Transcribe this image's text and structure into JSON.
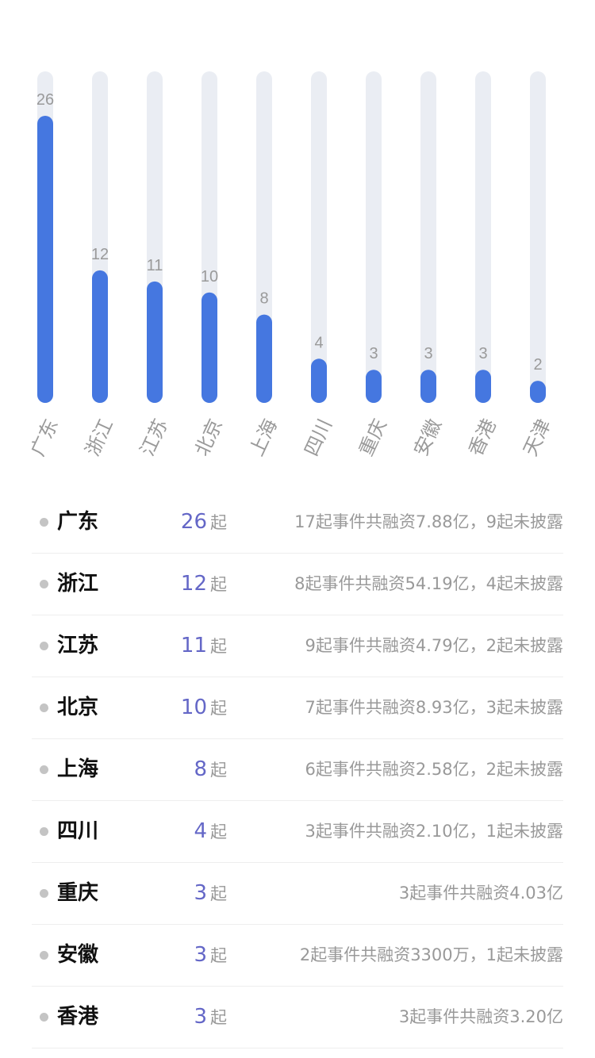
{
  "colors": {
    "bar_fill": "#4577e0",
    "bar_track": "#eaedf3",
    "value_label": "#9a9a9a",
    "axis_label": "#9a9a9a",
    "count": "#6467c7",
    "dot": "#c4c4c4"
  },
  "chart_data": {
    "type": "bar",
    "categories": [
      "广东",
      "浙江",
      "江苏",
      "北京",
      "上海",
      "四川",
      "重庆",
      "安徽",
      "香港",
      "天津"
    ],
    "values": [
      26,
      12,
      11,
      10,
      8,
      4,
      3,
      3,
      3,
      2
    ],
    "data_labels": [
      "26",
      "12",
      "11",
      "10",
      "8",
      "4",
      "3",
      "3",
      "3",
      "2"
    ],
    "ylim": [
      0,
      26
    ],
    "grid": false,
    "legend": "none"
  },
  "list": {
    "rows": [
      {
        "name": "广东",
        "count": "26",
        "unit": "起",
        "desc": "17起事件共融资7.88亿，9起未披露"
      },
      {
        "name": "浙江",
        "count": "12",
        "unit": "起",
        "desc": "8起事件共融资54.19亿，4起未披露"
      },
      {
        "name": "江苏",
        "count": "11",
        "unit": "起",
        "desc": "9起事件共融资4.79亿，2起未披露"
      },
      {
        "name": "北京",
        "count": "10",
        "unit": "起",
        "desc": "7起事件共融资8.93亿，3起未披露"
      },
      {
        "name": "上海",
        "count": "8",
        "unit": "起",
        "desc": "6起事件共融资2.58亿，2起未披露"
      },
      {
        "name": "四川",
        "count": "4",
        "unit": "起",
        "desc": "3起事件共融资2.10亿，1起未披露"
      },
      {
        "name": "重庆",
        "count": "3",
        "unit": "起",
        "desc": "3起事件共融资4.03亿"
      },
      {
        "name": "安徽",
        "count": "3",
        "unit": "起",
        "desc": "2起事件共融资3300万，1起未披露"
      },
      {
        "name": "香港",
        "count": "3",
        "unit": "起",
        "desc": "3起事件共融资3.20亿"
      }
    ]
  }
}
